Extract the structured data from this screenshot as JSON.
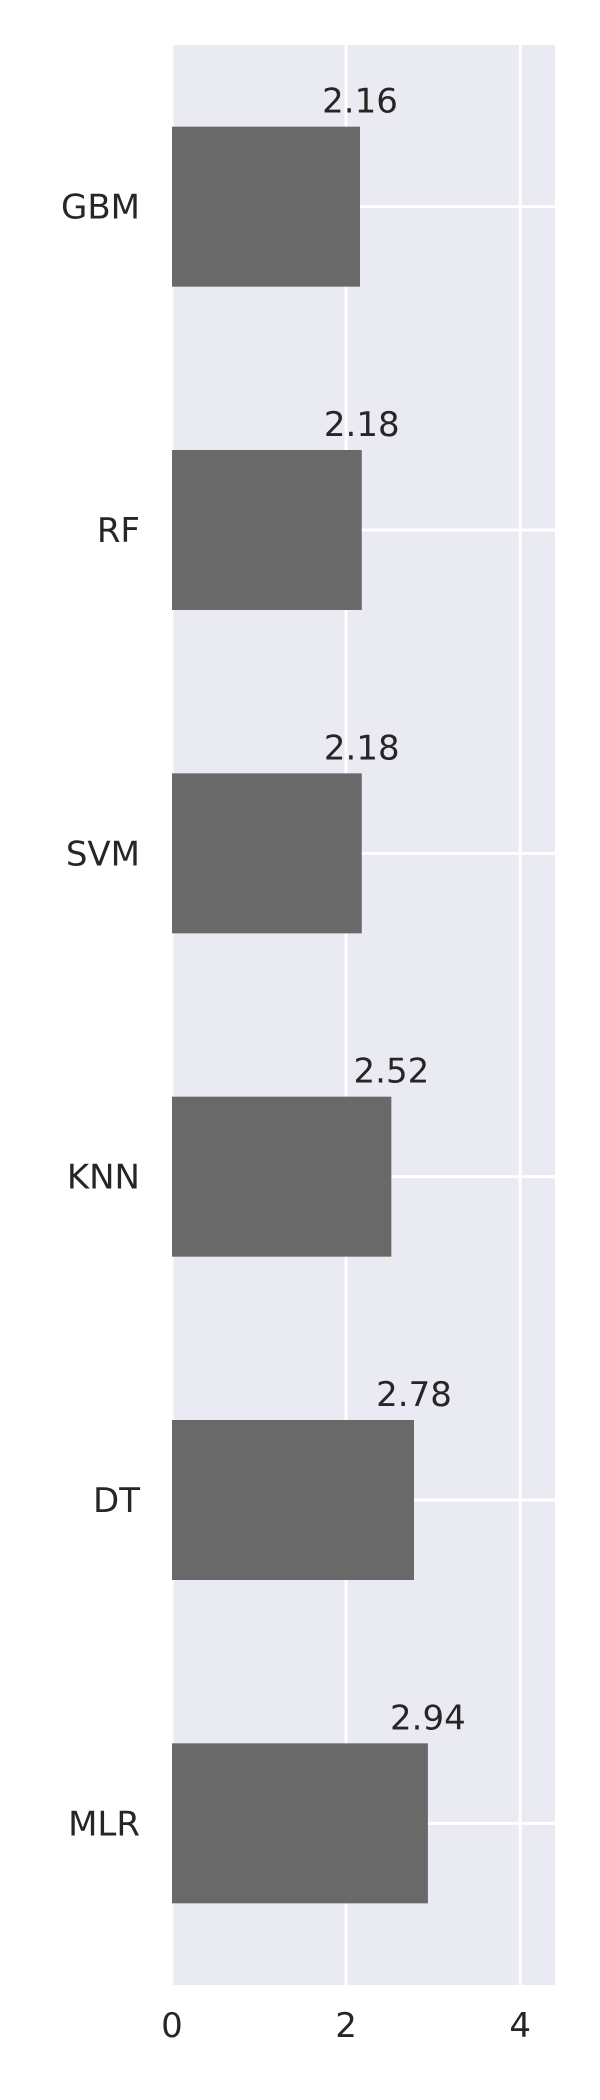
{
  "chart_data": {
    "type": "bar",
    "orientation": "horizontal",
    "categories": [
      "GBM",
      "RF",
      "SVM",
      "KNN",
      "DT",
      "MLR"
    ],
    "values": [
      2.16,
      2.18,
      2.18,
      2.52,
      2.78,
      2.94
    ],
    "value_labels": [
      "2.16",
      "2.18",
      "2.18",
      "2.52",
      "2.78",
      "2.94"
    ],
    "x_ticks": [
      "0",
      "2",
      "4"
    ],
    "xlim": [
      0,
      4.4
    ],
    "grid": true,
    "colors": {
      "bar": "#696969",
      "plot_background": "#EAEAF2",
      "grid": "#FFFFFF",
      "text": "#262626"
    }
  }
}
